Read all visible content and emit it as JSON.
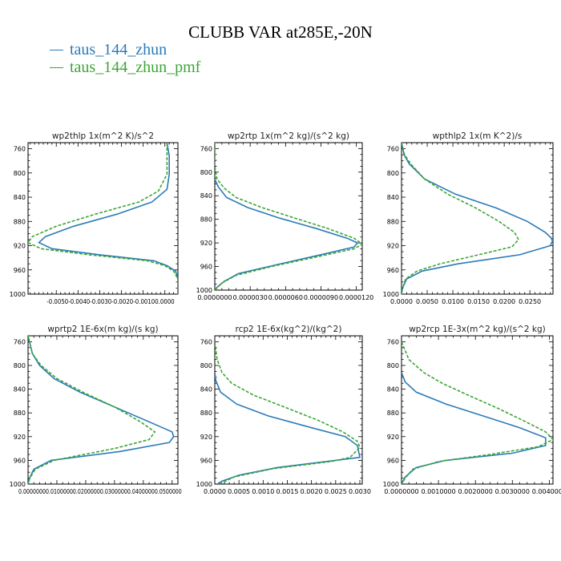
{
  "title": "CLUBB VAR at285E,-20N",
  "legend": [
    {
      "label": "taus_144_zhun",
      "color": "#2b7bb9"
    },
    {
      "label": "taus_144_zhun_pmf",
      "color": "#3ca635"
    }
  ],
  "chart_data": [
    {
      "type": "line",
      "title": "wp2thlp  1x(m^2 K)/s^2",
      "ylim": [
        1000,
        750
      ],
      "yticks": [
        760,
        800,
        840,
        880,
        920,
        960,
        1000
      ],
      "xlim": [
        -0.0063,
        0.0006
      ],
      "xticks": [
        -0.005,
        -0.004,
        -0.003,
        -0.002,
        -0.001,
        0.0
      ],
      "xticklabels": [
        "-0.0050",
        "-0.0040",
        "-0.0030",
        "-0.0020",
        "-0.0010",
        "0.0000"
      ],
      "xtick_label_mode": "joined",
      "series": [
        {
          "name": "taus_144_zhun",
          "points": [
            [
              0.0001,
              750
            ],
            [
              0.0002,
              772
            ],
            [
              0.0002,
              802
            ],
            [
              0.0001,
              827
            ],
            [
              -0.0006,
              848
            ],
            [
              -0.0022,
              868
            ],
            [
              -0.0042,
              888
            ],
            [
              -0.0055,
              905
            ],
            [
              -0.0058,
              915
            ],
            [
              -0.0052,
              925
            ],
            [
              -0.003,
              935
            ],
            [
              -0.0005,
              945
            ],
            [
              0.0001,
              953
            ],
            [
              0.0005,
              962
            ],
            [
              0.0006,
              975
            ],
            [
              0.0006,
              990
            ],
            [
              0.0006,
              1000
            ]
          ]
        },
        {
          "name": "taus_144_zhun_pmf",
          "points": [
            [
              0.0001,
              750
            ],
            [
              0.0001,
              772
            ],
            [
              0.0001,
              802
            ],
            [
              -0.0003,
              830
            ],
            [
              -0.0012,
              848
            ],
            [
              -0.0032,
              868
            ],
            [
              -0.005,
              888
            ],
            [
              -0.0061,
              905
            ],
            [
              -0.0063,
              915
            ],
            [
              -0.0057,
              925
            ],
            [
              -0.0035,
              935
            ],
            [
              -0.0008,
              945
            ],
            [
              0.0,
              953
            ],
            [
              0.0004,
              962
            ],
            [
              0.0006,
              975
            ],
            [
              0.0006,
              990
            ],
            [
              0.0006,
              1000
            ]
          ]
        }
      ]
    },
    {
      "type": "line",
      "title": "wp2rtp  1x(m^2 kg)/(s^2 kg)",
      "ylim": [
        1000,
        750
      ],
      "yticks": [
        760,
        800,
        840,
        880,
        920,
        960,
        1000
      ],
      "xlim": [
        0.0,
        1.25e-05
      ],
      "xticks": [
        0.0,
        3e-06,
        6e-06,
        9e-06,
        1.2e-05
      ],
      "xticklabels": [
        "0.0000000",
        "0.0000030",
        "0.0000060",
        "0.0000090",
        "0.0000120"
      ],
      "series": [
        {
          "name": "taus_144_zhun",
          "points": [
            [
              0.0,
              812
            ],
            [
              3e-07,
              825
            ],
            [
              1e-06,
              843
            ],
            [
              2.8e-06,
              860
            ],
            [
              5.5e-06,
              878
            ],
            [
              8.5e-06,
              895
            ],
            [
              1.12e-05,
              912
            ],
            [
              1.21e-05,
              920
            ],
            [
              1.18e-05,
              927
            ],
            [
              9e-06,
              940
            ],
            [
              5e-06,
              958
            ],
            [
              2e-06,
              972
            ],
            [
              8e-07,
              985
            ],
            [
              2e-07,
              995
            ],
            [
              0.0,
              1000
            ]
          ]
        },
        {
          "name": "taus_144_zhun_pmf",
          "points": [
            [
              0.0,
              750
            ],
            [
              0.0,
              790
            ],
            [
              2e-07,
              812
            ],
            [
              8e-07,
              827
            ],
            [
              1.8e-06,
              843
            ],
            [
              4e-06,
              860
            ],
            [
              6.8e-06,
              878
            ],
            [
              9.5e-06,
              895
            ],
            [
              1.18e-05,
              912
            ],
            [
              1.25e-05,
              922
            ],
            [
              1.18e-05,
              930
            ],
            [
              8.8e-06,
              943
            ],
            [
              4.8e-06,
              960
            ],
            [
              1.8e-06,
              975
            ],
            [
              6e-07,
              988
            ],
            [
              0.0,
              1000
            ]
          ]
        }
      ]
    },
    {
      "type": "line",
      "title": "wpthlp2  1x(m K^2)/s",
      "ylim": [
        1000,
        750
      ],
      "yticks": [
        760,
        800,
        840,
        880,
        920,
        960,
        1000
      ],
      "xlim": [
        0.0,
        0.0295
      ],
      "xticks": [
        0.0,
        0.005,
        0.01,
        0.015,
        0.02,
        0.025
      ],
      "xticklabels": [
        "0.0000",
        "0.0050",
        "0.0100",
        "0.0150",
        "0.0200",
        "0.0250"
      ],
      "series": [
        {
          "name": "taus_144_zhun",
          "points": [
            [
              0.0,
              750
            ],
            [
              0.0005,
              770
            ],
            [
              0.0015,
              785
            ],
            [
              0.0045,
              810
            ],
            [
              0.0105,
              835
            ],
            [
              0.0185,
              858
            ],
            [
              0.0245,
              880
            ],
            [
              0.028,
              898
            ],
            [
              0.0295,
              910
            ],
            [
              0.029,
              920
            ],
            [
              0.023,
              935
            ],
            [
              0.011,
              950
            ],
            [
              0.004,
              962
            ],
            [
              0.001,
              975
            ],
            [
              0.0002,
              990
            ],
            [
              0.0,
              1000
            ]
          ]
        },
        {
          "name": "taus_144_zhun_pmf",
          "points": [
            [
              0.0,
              750
            ],
            [
              0.0006,
              770
            ],
            [
              0.0018,
              785
            ],
            [
              0.0045,
              810
            ],
            [
              0.009,
              835
            ],
            [
              0.0145,
              858
            ],
            [
              0.019,
              880
            ],
            [
              0.022,
              898
            ],
            [
              0.0228,
              910
            ],
            [
              0.0215,
              922
            ],
            [
              0.015,
              935
            ],
            [
              0.0075,
              950
            ],
            [
              0.003,
              962
            ],
            [
              0.0008,
              975
            ],
            [
              0.0002,
              990
            ],
            [
              0.0,
              1000
            ]
          ]
        }
      ]
    },
    {
      "type": "line",
      "title": "wprtp2  1E-6x(m kg)/(s kg)",
      "ylim": [
        1000,
        750
      ],
      "yticks": [
        760,
        800,
        840,
        880,
        920,
        960,
        1000
      ],
      "xlim": [
        0.0,
        0.052
      ],
      "xticks": [
        0.0,
        0.01,
        0.02,
        0.03,
        0.04,
        0.05
      ],
      "xticklabels": [
        "0.0000000",
        "0.0100000",
        "0.0200000",
        "0.0300000",
        "0.0400000",
        "0.0500000"
      ],
      "xtick_label_mode": "joined",
      "series": [
        {
          "name": "taus_144_zhun",
          "points": [
            [
              0.0,
              750
            ],
            [
              0.0015,
              780
            ],
            [
              0.004,
              800
            ],
            [
              0.009,
              822
            ],
            [
              0.018,
              845
            ],
            [
              0.03,
              870
            ],
            [
              0.042,
              895
            ],
            [
              0.05,
              912
            ],
            [
              0.0505,
              920
            ],
            [
              0.049,
              930
            ],
            [
              0.032,
              945
            ],
            [
              0.008,
              960
            ],
            [
              0.002,
              975
            ],
            [
              0.0005,
              990
            ],
            [
              0.0,
              1000
            ]
          ]
        },
        {
          "name": "taus_144_zhun_pmf",
          "points": [
            [
              0.0,
              750
            ],
            [
              0.0015,
              780
            ],
            [
              0.0045,
              800
            ],
            [
              0.01,
              822
            ],
            [
              0.019,
              845
            ],
            [
              0.03,
              870
            ],
            [
              0.039,
              895
            ],
            [
              0.044,
              912
            ],
            [
              0.042,
              925
            ],
            [
              0.03,
              940
            ],
            [
              0.009,
              960
            ],
            [
              0.0025,
              975
            ],
            [
              0.0006,
              990
            ],
            [
              0.0,
              1000
            ]
          ]
        }
      ]
    },
    {
      "type": "line",
      "title": "rcp2  1E-6x(kg^2)/(kg^2)",
      "ylim": [
        1000,
        750
      ],
      "yticks": [
        760,
        800,
        840,
        880,
        920,
        960,
        1000
      ],
      "xlim": [
        0.0,
        0.00305
      ],
      "xticks": [
        0.0,
        0.0005,
        0.001,
        0.0015,
        0.002,
        0.0025,
        0.003
      ],
      "xticklabels": [
        "0.0000",
        "0.0005",
        "0.0010",
        "0.0015",
        "0.0020",
        "0.0025",
        "0.0030"
      ],
      "series": [
        {
          "name": "taus_144_zhun",
          "points": [
            [
              0.0,
              812
            ],
            [
              2e-05,
              825
            ],
            [
              0.00012,
              845
            ],
            [
              0.00045,
              865
            ],
            [
              0.0011,
              885
            ],
            [
              0.002,
              905
            ],
            [
              0.0027,
              920
            ],
            [
              0.00295,
              935
            ],
            [
              0.003,
              955
            ],
            [
              0.0025,
              960
            ],
            [
              0.0013,
              972
            ],
            [
              0.0005,
              985
            ],
            [
              0.00015,
              995
            ],
            [
              5e-05,
              1000
            ]
          ]
        },
        {
          "name": "taus_144_zhun_pmf",
          "points": [
            [
              0.0,
              760
            ],
            [
              5e-05,
              790
            ],
            [
              0.00015,
              812
            ],
            [
              0.00035,
              830
            ],
            [
              0.0008,
              850
            ],
            [
              0.0015,
              872
            ],
            [
              0.00215,
              893
            ],
            [
              0.00265,
              912
            ],
            [
              0.00295,
              928
            ],
            [
              0.003,
              938
            ],
            [
              0.0028,
              955
            ],
            [
              0.0024,
              962
            ],
            [
              0.0012,
              974
            ],
            [
              0.0004,
              988
            ],
            [
              0.0001,
              1000
            ]
          ]
        }
      ]
    },
    {
      "type": "line",
      "title": "wp2rcp  1E-3x(m^2 kg)/(s^2 kg)",
      "ylim": [
        1000,
        750
      ],
      "yticks": [
        760,
        800,
        840,
        880,
        920,
        960,
        1000
      ],
      "xlim": [
        0.0,
        0.0041
      ],
      "xticks": [
        0.0,
        0.001,
        0.002,
        0.003,
        0.004
      ],
      "xticklabels": [
        "0.0000000",
        "0.0010000",
        "0.0020000",
        "0.0030000",
        "0.0040000"
      ],
      "series": [
        {
          "name": "taus_144_zhun",
          "points": [
            [
              0.0,
              812
            ],
            [
              0.0001,
              828
            ],
            [
              0.0004,
              845
            ],
            [
              0.0012,
              865
            ],
            [
              0.0022,
              885
            ],
            [
              0.0032,
              905
            ],
            [
              0.0039,
              922
            ],
            [
              0.0039,
              935
            ],
            [
              0.003,
              948
            ],
            [
              0.0012,
              960
            ],
            [
              0.0004,
              972
            ],
            [
              0.0001,
              988
            ],
            [
              0.0,
              1000
            ]
          ]
        },
        {
          "name": "taus_144_zhun_pmf",
          "points": [
            [
              0.0,
              760
            ],
            [
              0.0002,
              790
            ],
            [
              0.0006,
              812
            ],
            [
              0.0011,
              830
            ],
            [
              0.0018,
              850
            ],
            [
              0.0026,
              872
            ],
            [
              0.0033,
              893
            ],
            [
              0.0039,
              912
            ],
            [
              0.0041,
              925
            ],
            [
              0.0037,
              937
            ],
            [
              0.0024,
              950
            ],
            [
              0.001,
              962
            ],
            [
              0.0003,
              975
            ],
            [
              0.0001,
              990
            ],
            [
              0.0,
              1000
            ]
          ]
        }
      ]
    }
  ]
}
